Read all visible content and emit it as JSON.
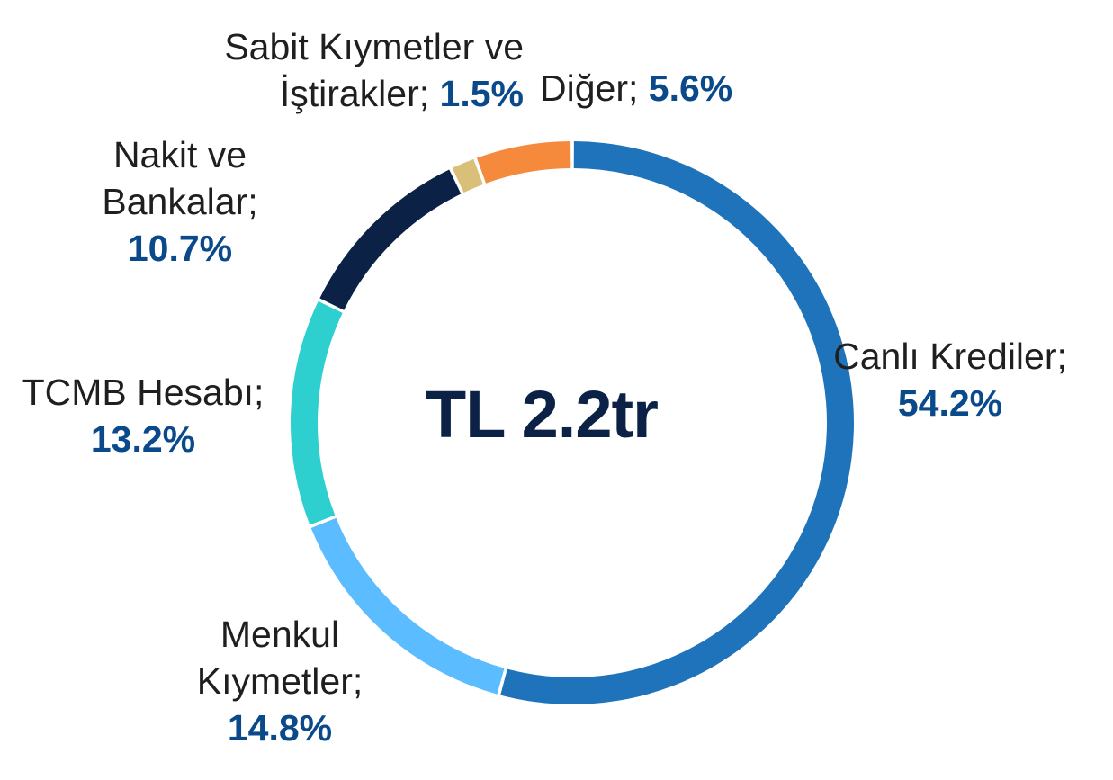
{
  "chart_data": {
    "type": "pie",
    "center_label": "TL 2.2tr",
    "categories": [
      "Canlı Krediler",
      "Menkul Kıymetler",
      "TCMB Hesabı",
      "Nakit ve Bankalar",
      "Sabit Kıymetler ve İştirakler",
      "Diğer"
    ],
    "values": [
      54.2,
      14.8,
      13.2,
      10.7,
      1.5,
      5.6
    ],
    "value_labels": [
      "54.2%",
      "14.8%",
      "13.2%",
      "10.7%",
      "1.5%",
      "5.6%"
    ],
    "label_lines": [
      [
        "Canlı Krediler;"
      ],
      [
        "Menkul",
        "Kıymetler;"
      ],
      [
        "TCMB Hesabı;"
      ],
      [
        "Nakit ve",
        "Bankalar;"
      ],
      [
        "Sabit Kıymetler ve",
        "İştirakler;"
      ],
      [
        "Diğer;"
      ]
    ],
    "colors": [
      "#1f73ba",
      "#5bbcff",
      "#2ecfcf",
      "#0b2246",
      "#d9bf78",
      "#f5893c"
    ],
    "style": "donut"
  }
}
